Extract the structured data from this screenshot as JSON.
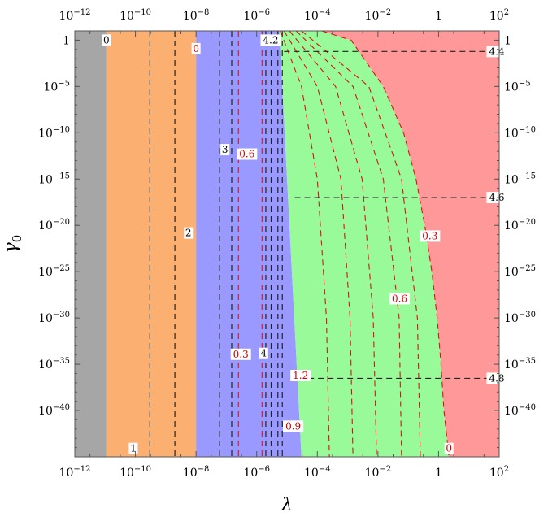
{
  "chart_data": {
    "type": "heatmap",
    "title": "",
    "xlabel": "λ",
    "ylabel": "γ0",
    "x_scale": "log",
    "y_scale": "log",
    "xlim": [
      1e-12,
      100
    ],
    "ylim": [
      1e-45,
      10
    ],
    "x_ticks": [
      {
        "value": 1e-12,
        "label": "10",
        "exp": "−12"
      },
      {
        "value": 1e-10,
        "label": "10",
        "exp": "−10"
      },
      {
        "value": 1e-08,
        "label": "10",
        "exp": "−8"
      },
      {
        "value": 1e-06,
        "label": "10",
        "exp": "−6"
      },
      {
        "value": 0.0001,
        "label": "10",
        "exp": "−4"
      },
      {
        "value": 0.01,
        "label": "10",
        "exp": "−2"
      },
      {
        "value": 1,
        "label": "1",
        "exp": ""
      },
      {
        "value": 100,
        "label": "10",
        "exp": "2"
      }
    ],
    "y_ticks": [
      {
        "value": 1,
        "label": "1",
        "exp": ""
      },
      {
        "value": 1e-05,
        "label": "10",
        "exp": "−5"
      },
      {
        "value": 1e-10,
        "label": "10",
        "exp": "−10"
      },
      {
        "value": 1e-15,
        "label": "10",
        "exp": "−15"
      },
      {
        "value": 1e-20,
        "label": "10",
        "exp": "−20"
      },
      {
        "value": 1e-25,
        "label": "10",
        "exp": "−25"
      },
      {
        "value": 1e-30,
        "label": "10",
        "exp": "−30"
      },
      {
        "value": 1e-35,
        "label": "10",
        "exp": "−35"
      },
      {
        "value": 1e-40,
        "label": "10",
        "exp": "−40"
      }
    ],
    "regions": [
      {
        "color": "#a6a6a6",
        "x_from": 1e-12,
        "x_to": 1.1e-11
      },
      {
        "color": "#fbb072",
        "x_from": 1.1e-11,
        "x_to": 1e-08
      },
      {
        "color": "#9999ff",
        "x_from": 1e-08,
        "x_to": "boundary_blue_green"
      },
      {
        "color": "#99fa99",
        "x_from": "boundary_blue_green",
        "x_to": "boundary_green_red"
      },
      {
        "color": "#ff9999",
        "x_from": "boundary_green_red",
        "x_to": 100
      }
    ],
    "boundary_blue_green": [
      {
        "y": 10,
        "x": 5.6e-06
      },
      {
        "y": 1e-45,
        "x": 3e-05
      }
    ],
    "boundary_green_red": [
      {
        "y": 10,
        "x": 0.00014
      },
      {
        "y": 1,
        "x": 0.0013
      },
      {
        "y": 1e-05,
        "x": 0.015
      },
      {
        "y": 1e-10,
        "x": 0.07
      },
      {
        "y": 1e-15,
        "x": 0.18
      },
      {
        "y": 1e-20,
        "x": 0.35
      },
      {
        "y": 1e-25,
        "x": 0.6
      },
      {
        "y": 1e-30,
        "x": 0.9
      },
      {
        "y": 1e-35,
        "x": 1.2
      },
      {
        "y": 1e-40,
        "x": 1.5
      },
      {
        "y": 1e-45,
        "x": 2.2
      }
    ],
    "black_vertical_contours": [
      3e-10,
      2e-09,
      6e-08,
      1.5e-07,
      2e-06,
      3e-06,
      5e-06,
      7e-06
    ],
    "red_vertical_contours": [
      2.5e-07,
      1.5e-06
    ],
    "red_curved_contours": [
      [
        {
          "y": 10,
          "x": 6e-06
        },
        {
          "y": 1e-05,
          "x": 3e-05
        },
        {
          "y": 1e-15,
          "x": 0.0001
        },
        {
          "y": 1e-30,
          "x": 0.0002
        },
        {
          "y": 1e-45,
          "x": 0.00025
        }
      ],
      [
        {
          "y": 10,
          "x": 8e-06
        },
        {
          "y": 1e-05,
          "x": 0.0001
        },
        {
          "y": 1e-15,
          "x": 0.0006
        },
        {
          "y": 1e-30,
          "x": 0.0012
        },
        {
          "y": 1e-45,
          "x": 0.0015
        }
      ],
      [
        {
          "y": 10,
          "x": 1.2e-05
        },
        {
          "y": 1e-05,
          "x": 0.0004
        },
        {
          "y": 1e-15,
          "x": 0.003
        },
        {
          "y": 1e-30,
          "x": 0.007
        },
        {
          "y": 1e-45,
          "x": 0.009
        }
      ],
      [
        {
          "y": 10,
          "x": 2e-05
        },
        {
          "y": 1e-05,
          "x": 0.0015
        },
        {
          "y": 1e-15,
          "x": 0.015
        },
        {
          "y": 1e-30,
          "x": 0.05
        },
        {
          "y": 1e-45,
          "x": 0.06
        }
      ],
      [
        {
          "y": 10,
          "x": 3e-05
        },
        {
          "y": 1e-05,
          "x": 0.005
        },
        {
          "y": 1e-15,
          "x": 0.06
        },
        {
          "y": 1e-30,
          "x": 0.2
        },
        {
          "y": 1e-45,
          "x": 0.25
        }
      ]
    ],
    "black_horizontal_contours": [
      {
        "y": 0.06,
        "x_from": 8e-06,
        "x_to": 100,
        "label": "4.4"
      },
      {
        "y": 1e-17,
        "x_from": 1.8e-05,
        "x_to": 100,
        "label": "4.6"
      },
      {
        "y": 3e-37,
        "x_from": 2.4e-05,
        "x_to": 100,
        "label": "4.8"
      }
    ],
    "contour_labels": [
      {
        "text": "0",
        "x": 1.1e-11,
        "y": 1,
        "color": "#000000"
      },
      {
        "text": "0",
        "x": 1e-08,
        "y": 0.12,
        "color": "#cc0000"
      },
      {
        "text": "4.2",
        "x": 2.9e-06,
        "y": 1,
        "color": "#000000"
      },
      {
        "text": "3",
        "x": 9e-08,
        "y": 1.5e-12,
        "color": "#000000"
      },
      {
        "text": "0.6",
        "x": 4.8e-07,
        "y": 5e-13,
        "color": "#cc0000"
      },
      {
        "text": "2",
        "x": 5.6e-09,
        "y": 1.5e-21,
        "color": "#000000"
      },
      {
        "text": "0.3",
        "x": 0.52,
        "y": 7e-22,
        "color": "#cc0000"
      },
      {
        "text": "0.6",
        "x": 0.052,
        "y": 1.2e-28,
        "color": "#cc0000"
      },
      {
        "text": "0.3",
        "x": 3e-07,
        "y": 1.2e-34,
        "color": "#cc0000"
      },
      {
        "text": "4",
        "x": 1.7e-06,
        "y": 1.5e-34,
        "color": "#000000"
      },
      {
        "text": "1.2",
        "x": 2.8e-05,
        "y": 6e-37,
        "color": "#cc0000"
      },
      {
        "text": "0.9",
        "x": 1.6e-05,
        "y": 2e-42,
        "color": "#cc0000"
      },
      {
        "text": "0.9",
        "x": 1.6e-05,
        "y": 2e-42,
        "color": "#cc0000"
      },
      {
        "text": "1",
        "x": 8.5e-11,
        "y": 8e-45,
        "color": "#000000"
      },
      {
        "text": "0",
        "x": 2.2,
        "y": 8e-45,
        "color": "#cc0000"
      }
    ]
  }
}
